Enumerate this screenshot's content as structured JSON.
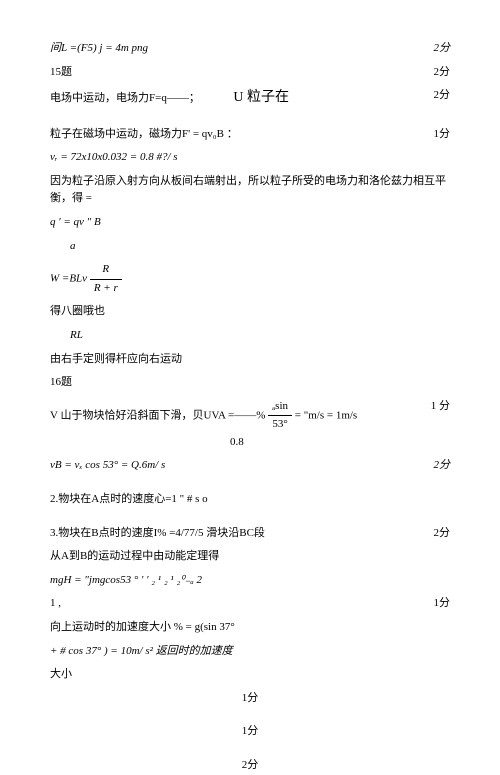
{
  "lines": [
    {
      "text": "间L =(F5) j = 4m png",
      "score": "2分",
      "italic": true
    },
    {
      "text": "15题",
      "score": "2分"
    },
    {
      "text_parts": [
        "电场中运动，电场力F=q——；",
        "U 粒子在"
      ],
      "score": "2分",
      "special": "split"
    },
    {
      "spacer": true
    },
    {
      "text": "粒子在磁场中运动，磁场力F' =  qv₀B  ：",
      "score": "1分"
    },
    {
      "text": "vᵣ =  72x10x0.032 = 0.8 #?/ s",
      "italic": true
    },
    {
      "text": "因为粒子沿原入射方向从板间右端射出，所以粒子所受的电场力和洛伦兹力相互平衡，得      ="
    },
    {
      "text": "q ' = qv \" B",
      "italic": true
    },
    {
      "text": "      a",
      "italic": true,
      "indent": true
    },
    {
      "frac_line": true,
      "prefix": "W =BLv",
      "num": "R",
      "den": "R + r",
      "italic": true
    },
    {
      "text": "得八圈哦也"
    },
    {
      "text": "      RL",
      "italic": true,
      "indent": true
    },
    {
      "text": "由右手定则得杆应向右运动"
    },
    {
      "text": "16题"
    },
    {
      "complex_line": true,
      "part1": "V 山于物块恰好沿斜面下滑，贝UVA =——%",
      "frac_num": "ₐsin",
      "frac_den": "53°",
      "part2": "= \"m/s =  1m/s",
      "part3": "0.8",
      "score": "1 分"
    },
    {
      "text": "vB = vₓ cos 53° = Q.6m/ s",
      "score": "2分",
      "italic": true
    },
    {
      "spacer": true
    },
    {
      "text": "2.物块在A点时的速度心=1 \" #  s o"
    },
    {
      "spacer": true
    },
    {
      "text": "3.物块在B点时的速度I% =4/77/5 滑块沿BC段",
      "score": "2分"
    },
    {
      "text": "从A到B的运动过程中由动能定理得"
    },
    {
      "text": "mgH = \"jmgcos53  °                      ' '  ₂   ¹  ₂   ¹ ₂⁰₋ₐ    2",
      "italic": true
    },
    {
      "text": "                                           1 ,",
      "score": "1分"
    },
    {
      "text": "向上运动时的加速度大小 %  = g(sin 37°"
    },
    {
      "text": "+  # cos 37° )  =  10m/ s² 返回时的加速度",
      "italic": true
    },
    {
      "text": "大小"
    },
    {
      "text": "",
      "score": "1分",
      "center": true
    },
    {
      "spacer": true
    },
    {
      "text": "",
      "score": "1分",
      "center": true
    },
    {
      "spacer": true
    },
    {
      "text": "",
      "score": "2分",
      "center": true
    }
  ],
  "colors": {
    "text": "#000000",
    "background": "#ffffff"
  }
}
